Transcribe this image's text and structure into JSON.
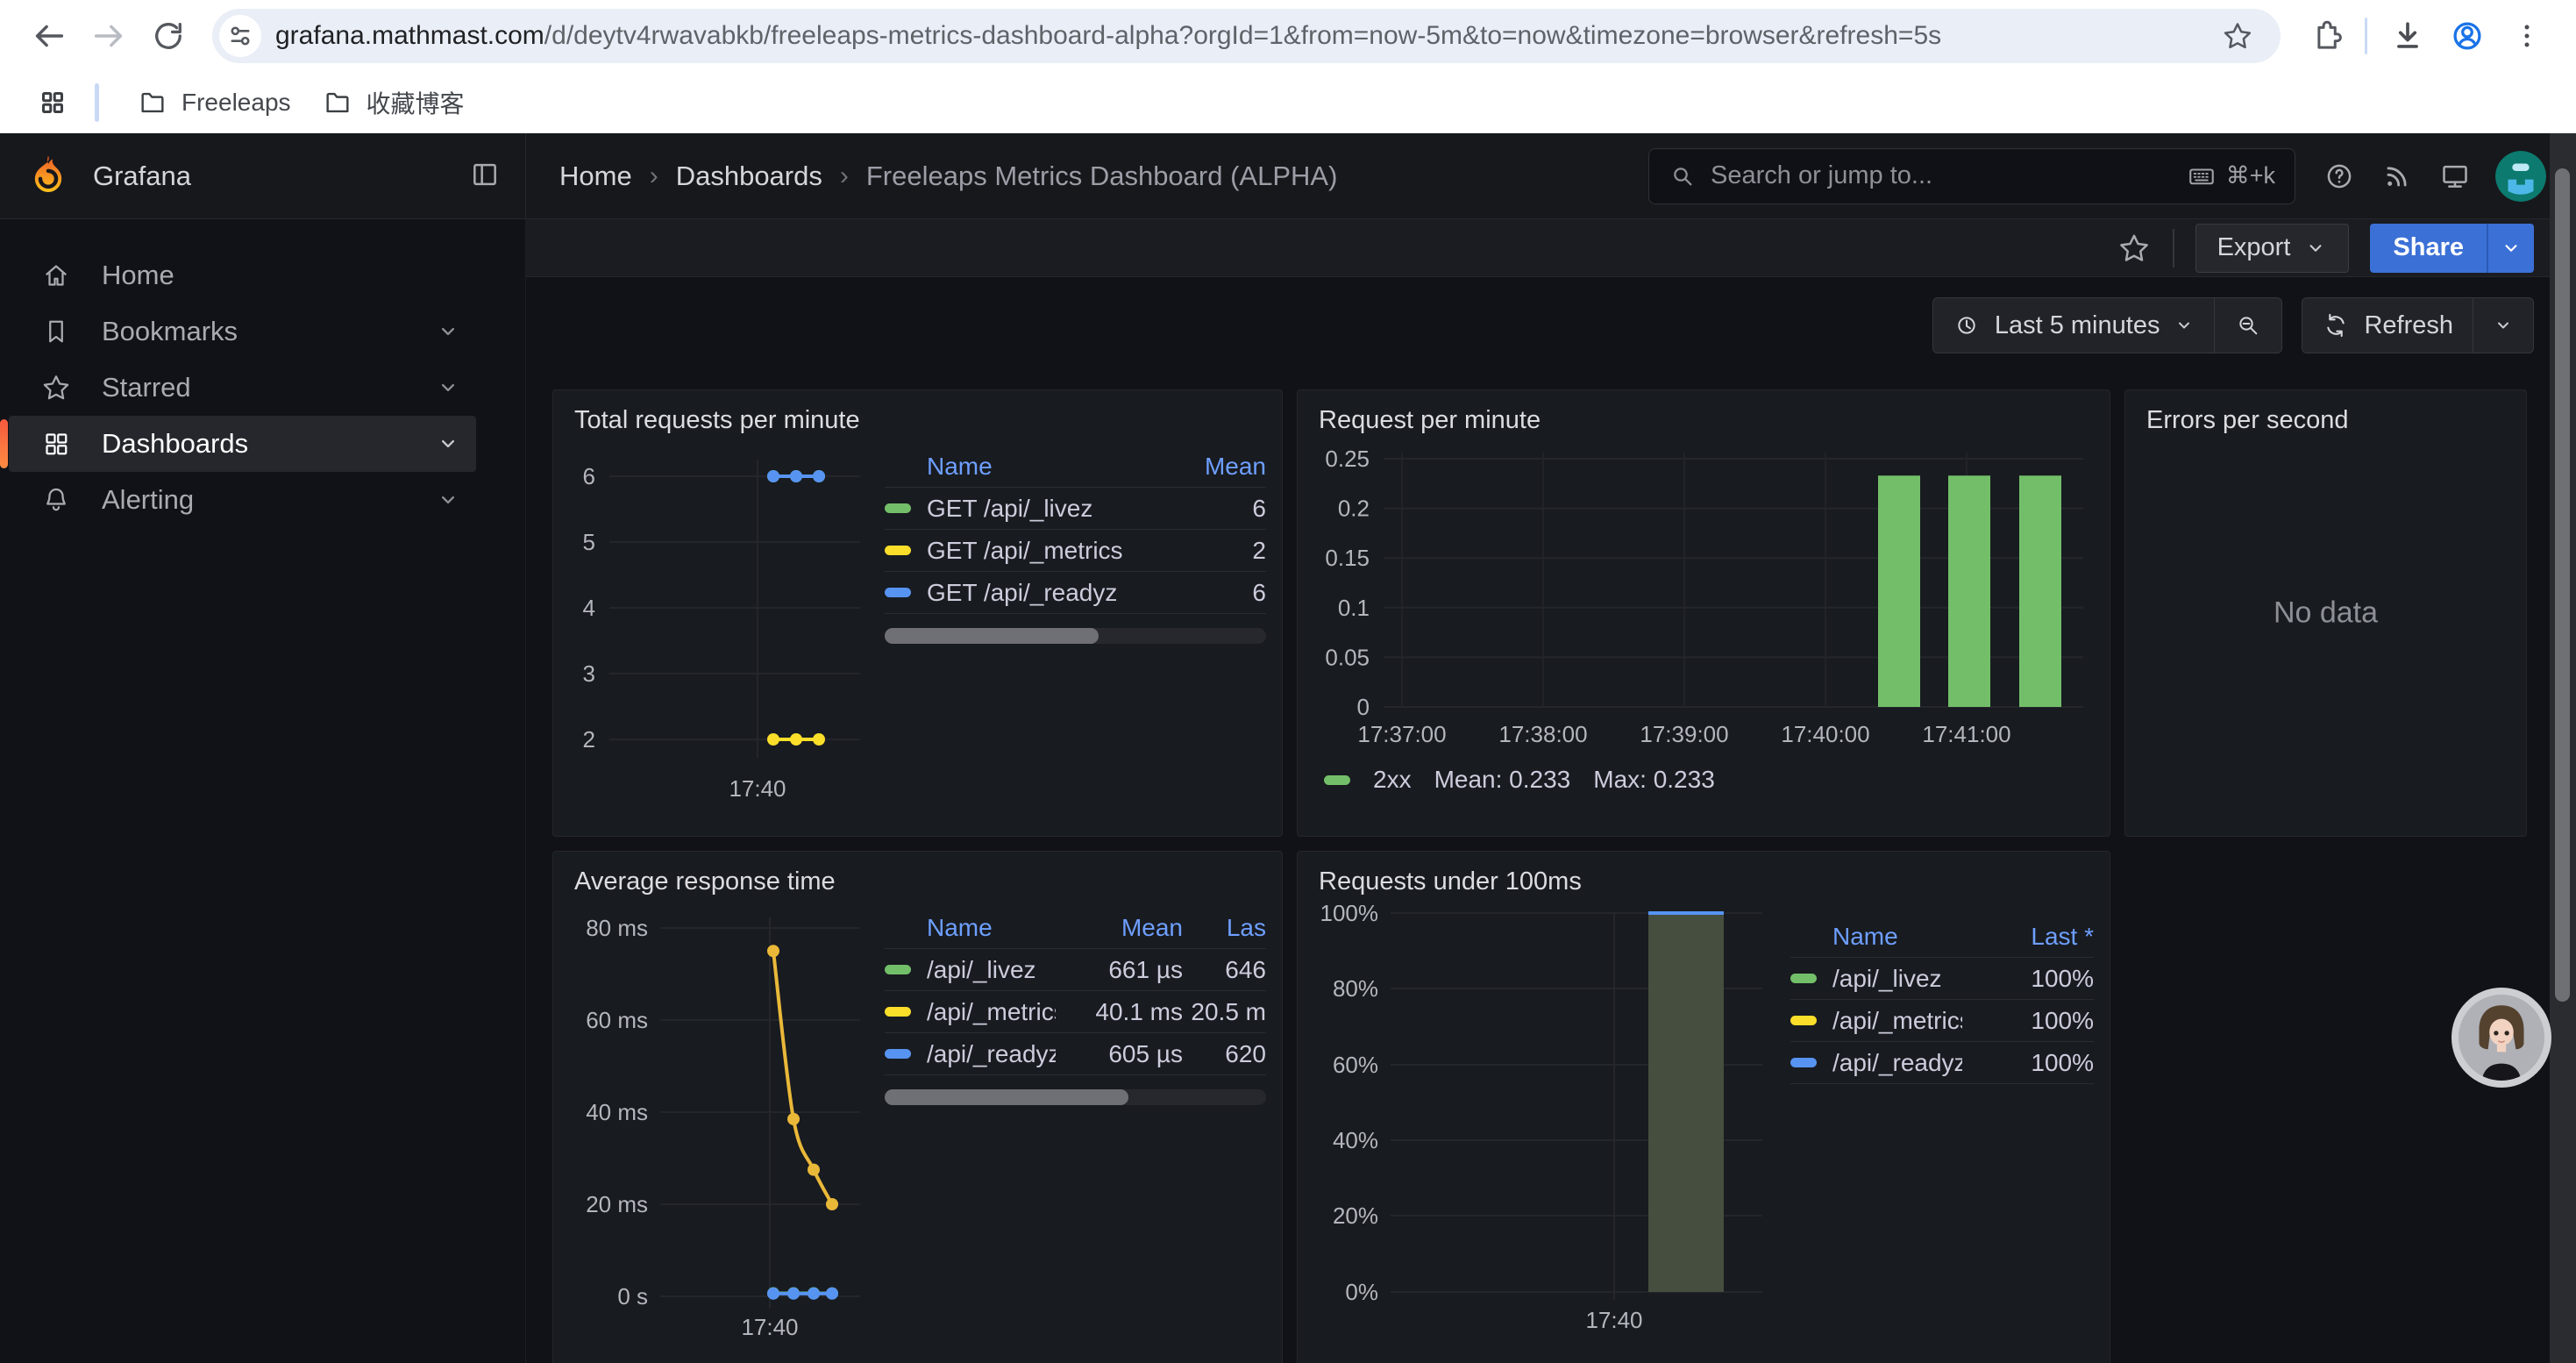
{
  "browser": {
    "url_host": "grafana.mathmast.com",
    "url_rest": "/d/deytv4rwavabkb/freeleaps-metrics-dashboard-alpha?orgId=1&from=now-5m&to=now&timezone=browser&refresh=5s",
    "bookmark_1": "Freeleaps",
    "bookmark_2": "收藏博客"
  },
  "header": {
    "brand": "Grafana",
    "breadcrumb_1": "Home",
    "breadcrumb_2": "Dashboards",
    "breadcrumb_3": "Freeleaps Metrics Dashboard (ALPHA)",
    "search_placeholder": "Search or jump to...",
    "search_shortcut": "⌘+k"
  },
  "sidebar": {
    "item_1": "Home",
    "item_2": "Bookmarks",
    "item_3": "Starred",
    "item_4": "Dashboards",
    "item_5": "Alerting",
    "active_item": "Dashboards"
  },
  "controls": {
    "export": "Export",
    "share": "Share",
    "time_range": "Last 5 minutes",
    "refresh": "Refresh"
  },
  "colors": {
    "accent_blue": "#3b70d6",
    "link_blue": "#6e9fff",
    "series_green": "#73bf69",
    "series_yellow_bright": "#fade2a",
    "series_yellow": "#eab839",
    "series_blue": "#5794f2",
    "bar_fill_olive": "#454e3f",
    "active_orange": "#ff8c42",
    "panel_bg": "#181b20",
    "page_bg": "#111217"
  },
  "panels": {
    "total": {
      "title": "Total requests per minute",
      "col_name": "Name",
      "col_mean": "Mean",
      "rows": [
        {
          "name": "GET /api/_livez",
          "mean": "6"
        },
        {
          "name": "GET /api/_metrics",
          "mean": "2"
        },
        {
          "name": "GET /api/_readyz",
          "mean": "6"
        }
      ]
    },
    "rpm": {
      "title": "Request per minute",
      "legend_series": "2xx",
      "legend_mean": "Mean: 0.233",
      "legend_max": "Max: 0.233"
    },
    "errors": {
      "title": "Errors per second",
      "message": "No data"
    },
    "avg": {
      "title": "Average response time",
      "col_name": "Name",
      "col_mean": "Mean",
      "col_last": "Las",
      "rows": [
        {
          "name": "/api/_livez",
          "mean": "661 µs",
          "last": "646"
        },
        {
          "name": "/api/_metrics",
          "mean": "40.1 ms",
          "last": "20.5 m"
        },
        {
          "name": "/api/_readyz",
          "mean": "605 µs",
          "last": "620"
        }
      ]
    },
    "under100": {
      "title": "Requests under 100ms",
      "col_name": "Name",
      "col_last": "Last *",
      "rows": [
        {
          "name": "/api/_livez",
          "last": "100%"
        },
        {
          "name": "/api/_metrics",
          "last": "100%"
        },
        {
          "name": "/api/_readyz",
          "last": "100%"
        }
      ]
    }
  },
  "chart_data": [
    {
      "panel": "Total requests per minute",
      "type": "line",
      "unit": "requests/min",
      "x": [
        "17:40:30",
        "17:41:00",
        "17:41:30"
      ],
      "series": [
        {
          "name": "GET /api/_livez",
          "color": "#73bf69",
          "values": [
            6,
            6,
            6
          ]
        },
        {
          "name": "GET /api/_metrics",
          "color": "#fade2a",
          "values": [
            2,
            2,
            2
          ]
        },
        {
          "name": "GET /api/_readyz",
          "color": "#5794f2",
          "values": [
            6,
            6,
            6
          ]
        }
      ],
      "y_ticks": [
        6,
        5,
        4,
        3,
        2
      ],
      "x_tick_labels": [
        "17:40"
      ],
      "ylim": [
        1.6,
        6.4
      ],
      "grid": true
    },
    {
      "panel": "Request per minute",
      "type": "bar",
      "x": [
        "17:40:30",
        "17:41:00",
        "17:41:30"
      ],
      "series": [
        {
          "name": "2xx",
          "color": "#73bf69",
          "values": [
            0.233,
            0.233,
            0.233
          ]
        }
      ],
      "y_ticks": [
        0.25,
        0.2,
        0.15,
        0.1,
        0.05,
        0
      ],
      "x_tick_labels": [
        "17:37:00",
        "17:38:00",
        "17:39:00",
        "17:40:00",
        "17:41:00"
      ],
      "mean": 0.233,
      "max": 0.233,
      "ylim": [
        0,
        0.25
      ],
      "grid": true,
      "legend_position": "bottom"
    },
    {
      "panel": "Errors per second",
      "type": "none",
      "message": "No data"
    },
    {
      "panel": "Average response time",
      "type": "line",
      "unit": "ms",
      "x": [
        "17:40:00",
        "17:40:30",
        "17:41:00",
        "17:41:30"
      ],
      "series": [
        {
          "name": "/api/_livez",
          "color": "#73bf69",
          "values": [
            0.66,
            0.66,
            0.66,
            0.65
          ]
        },
        {
          "name": "/api/_metrics",
          "color": "#eab839",
          "values": [
            75,
            38.5,
            27.5,
            20
          ]
        },
        {
          "name": "/api/_readyz",
          "color": "#5794f2",
          "values": [
            0.6,
            0.6,
            0.6,
            0.62
          ]
        }
      ],
      "y_ticks": [
        "80 ms",
        "60 ms",
        "40 ms",
        "20 ms",
        "0 s"
      ],
      "x_tick_labels": [
        "17:40"
      ],
      "ylim": [
        0,
        88
      ],
      "grid": true
    },
    {
      "panel": "Requests under 100ms",
      "type": "bar",
      "unit": "%",
      "x": [
        "17:40:30",
        "17:41:00",
        "17:41:30"
      ],
      "series": [
        {
          "name": "/api/_livez",
          "color": "#73bf69",
          "values": [
            100,
            100,
            100
          ]
        },
        {
          "name": "/api/_metrics",
          "color": "#eab839",
          "values": [
            100,
            100,
            100
          ]
        },
        {
          "name": "/api/_readyz",
          "color": "#5794f2",
          "values": [
            100,
            100,
            100
          ]
        }
      ],
      "y_ticks": [
        "100%",
        "80%",
        "60%",
        "40%",
        "20%",
        "0%"
      ],
      "x_tick_labels": [
        "17:40"
      ],
      "ylim": [
        0,
        100
      ],
      "grid": true
    }
  ]
}
